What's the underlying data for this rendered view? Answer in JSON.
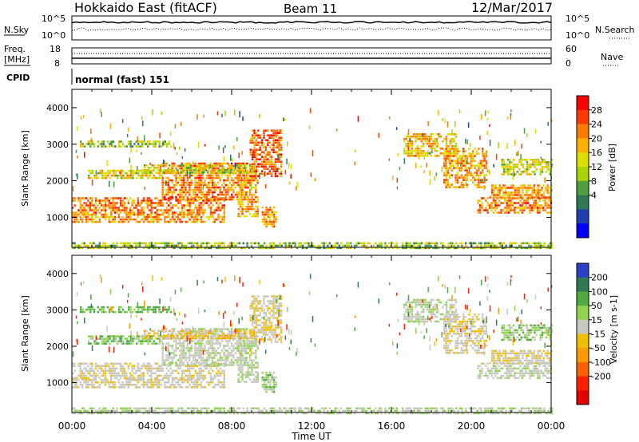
{
  "header": {
    "title": "Hokkaido East (fitACF)",
    "beam": "Beam 11",
    "date": "12/Mar/2017"
  },
  "top_panels": {
    "nsky_label": "N.Sky",
    "nsearch_label": "N.Search",
    "left_ticks": [
      "10^5",
      "10^0"
    ],
    "right_ticks": [
      "10^5",
      "10^0"
    ],
    "freq_label_1": "Freq.",
    "freq_label_2": "[MHz]",
    "freq_ticks": [
      "18",
      "8"
    ],
    "nave_label": "Nave",
    "nave_ticks": [
      "60",
      "0"
    ],
    "cpid_label": "CPID",
    "cpid_text": "normal (fast) 151"
  },
  "power_panel": {
    "ylabel": "Slant Range [km]",
    "colorbar_label": "Power [dB]",
    "colorbar_ticks": [
      "28",
      "24",
      "20",
      "16",
      "12",
      "8",
      "4"
    ],
    "colorbar_colors": [
      "#ff0000",
      "#ff3a00",
      "#ff7a00",
      "#ffb000",
      "#dede00",
      "#a8d400",
      "#4f9f3f",
      "#2f7a55",
      "#1f3fb0",
      "#0000ff"
    ]
  },
  "velocity_panel": {
    "ylabel": "Slant Range [km]",
    "colorbar_label": "Velocity [m s-1]",
    "colorbar_ticks": [
      "200",
      "100",
      "50",
      "15",
      "-15",
      "-50",
      "-100",
      "-200"
    ],
    "colorbar_colors": [
      "#2a3fc8",
      "#2f7a55",
      "#4faa3f",
      "#8fd44f",
      "#c8c8c0",
      "#f0c000",
      "#ff9a00",
      "#ff6000",
      "#ff2000",
      "#e60000"
    ]
  },
  "x_axis": {
    "xlabel": "Time UT",
    "ticks": [
      "00:00",
      "04:00",
      "08:00",
      "12:00",
      "16:00",
      "20:00",
      "00:00"
    ]
  },
  "chart_data": {
    "type": "heatmap",
    "title": "Hokkaido East (fitACF)",
    "xlabel": "Time UT",
    "ylabel": "Slant Range [km]",
    "xlim": [
      0,
      24
    ],
    "ylim": [
      180,
      4500
    ],
    "y_ticks": [
      1000,
      2000,
      3000,
      4000
    ],
    "power_range_db": [
      0,
      32
    ],
    "velocity_range_ms": [
      -250,
      250
    ],
    "regions": [
      {
        "t0": 0.0,
        "t1": 7.6,
        "r0": 1150,
        "r1": 1550,
        "power": 24,
        "velocity": -5
      },
      {
        "t0": 0.0,
        "t1": 7.6,
        "r0": 850,
        "r1": 1100,
        "power": 22,
        "velocity": -5
      },
      {
        "t0": 4.5,
        "t1": 8.8,
        "r0": 1500,
        "r1": 2500,
        "power": 24,
        "velocity": 5
      },
      {
        "t0": 8.3,
        "t1": 9.3,
        "r0": 1000,
        "r1": 2300,
        "power": 22,
        "velocity": 10
      },
      {
        "t0": 8.9,
        "t1": 10.5,
        "r0": 2100,
        "r1": 3400,
        "power": 26,
        "velocity": -10
      },
      {
        "t0": 9.5,
        "t1": 10.2,
        "r0": 750,
        "r1": 1300,
        "power": 22,
        "velocity": 20
      },
      {
        "t0": 0.8,
        "t1": 4.5,
        "r0": 2100,
        "r1": 2300,
        "power": 18,
        "velocity": 30
      },
      {
        "t0": 3.5,
        "t1": 9.0,
        "r0": 2250,
        "r1": 2450,
        "power": 16,
        "velocity": -20
      },
      {
        "t0": 0.4,
        "t1": 5.0,
        "r0": 2950,
        "r1": 3100,
        "power": 14,
        "velocity": 40
      },
      {
        "t0": 16.6,
        "t1": 19.2,
        "r0": 2700,
        "r1": 3300,
        "power": 20,
        "velocity": 5
      },
      {
        "t0": 18.6,
        "t1": 20.8,
        "r0": 1800,
        "r1": 2900,
        "power": 22,
        "velocity": -5
      },
      {
        "t0": 20.3,
        "t1": 24.0,
        "r0": 1100,
        "r1": 1550,
        "power": 24,
        "velocity": 5
      },
      {
        "t0": 20.9,
        "t1": 24.0,
        "r0": 1550,
        "r1": 1900,
        "power": 22,
        "velocity": -10
      },
      {
        "t0": 21.5,
        "t1": 24.0,
        "r0": 2200,
        "r1": 2600,
        "power": 16,
        "velocity": 20
      },
      {
        "t0": 0.0,
        "t1": 24.0,
        "r0": 180,
        "r1": 320,
        "power": 14,
        "velocity": 10
      }
    ]
  }
}
